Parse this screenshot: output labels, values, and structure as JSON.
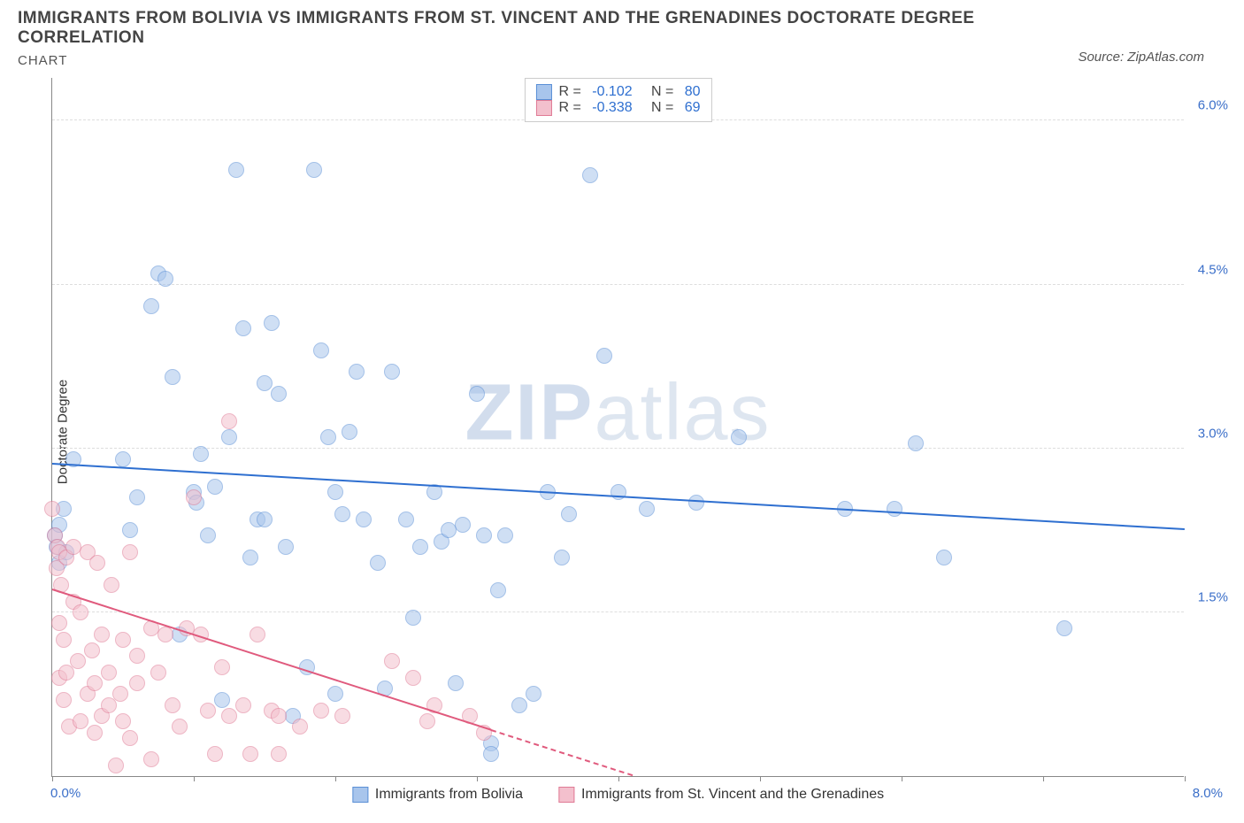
{
  "title": "IMMIGRANTS FROM BOLIVIA VS IMMIGRANTS FROM ST. VINCENT AND THE GRENADINES DOCTORATE DEGREE CORRELATION",
  "subtitle": "CHART",
  "source_label": "Source: ZipAtlas.com",
  "ylabel": "Doctorate Degree",
  "watermark_bold": "ZIP",
  "watermark_light": "atlas",
  "x_axis": {
    "min": 0.0,
    "max": 8.0,
    "start_label": "0.0%",
    "end_label": "8.0%",
    "tick_step": 1.0
  },
  "y_axis": {
    "min": 0.0,
    "max": 6.4,
    "gridlines": [
      1.5,
      3.0,
      4.5,
      6.0
    ],
    "tick_labels": [
      "1.5%",
      "3.0%",
      "4.5%",
      "6.0%"
    ]
  },
  "series": [
    {
      "id": "bolivia",
      "label": "Immigrants from Bolivia",
      "color_fill": "#a8c5ec",
      "color_stroke": "#5a8fd6",
      "line_color": "#2e6fd0",
      "marker_radius": 9,
      "fill_opacity": 0.55,
      "R": "-0.102",
      "N": "80",
      "trend": {
        "x1": 0.0,
        "y1": 2.85,
        "x2": 8.0,
        "y2": 2.25,
        "dash_from_x": null
      },
      "points": [
        [
          0.02,
          2.2
        ],
        [
          0.03,
          2.1
        ],
        [
          0.05,
          2.3
        ],
        [
          0.05,
          1.95
        ],
        [
          0.08,
          2.45
        ],
        [
          0.1,
          2.05
        ],
        [
          0.15,
          2.9
        ],
        [
          0.5,
          2.9
        ],
        [
          0.55,
          2.25
        ],
        [
          0.6,
          2.55
        ],
        [
          0.7,
          4.3
        ],
        [
          0.75,
          4.6
        ],
        [
          0.8,
          4.55
        ],
        [
          0.85,
          3.65
        ],
        [
          0.9,
          1.3
        ],
        [
          1.0,
          2.6
        ],
        [
          1.02,
          2.5
        ],
        [
          1.05,
          2.95
        ],
        [
          1.1,
          2.2
        ],
        [
          1.15,
          2.65
        ],
        [
          1.2,
          0.7
        ],
        [
          1.25,
          3.1
        ],
        [
          1.3,
          5.55
        ],
        [
          1.35,
          4.1
        ],
        [
          1.4,
          2.0
        ],
        [
          1.45,
          2.35
        ],
        [
          1.5,
          3.6
        ],
        [
          1.5,
          2.35
        ],
        [
          1.55,
          4.15
        ],
        [
          1.6,
          3.5
        ],
        [
          1.65,
          2.1
        ],
        [
          1.7,
          0.55
        ],
        [
          1.8,
          1.0
        ],
        [
          1.85,
          5.55
        ],
        [
          1.9,
          3.9
        ],
        [
          1.95,
          3.1
        ],
        [
          2.0,
          0.75
        ],
        [
          2.0,
          2.6
        ],
        [
          2.05,
          2.4
        ],
        [
          2.1,
          3.15
        ],
        [
          2.15,
          3.7
        ],
        [
          2.2,
          2.35
        ],
        [
          2.3,
          1.95
        ],
        [
          2.35,
          0.8
        ],
        [
          2.4,
          3.7
        ],
        [
          2.5,
          2.35
        ],
        [
          2.55,
          1.45
        ],
        [
          2.6,
          2.1
        ],
        [
          2.7,
          2.6
        ],
        [
          2.75,
          2.15
        ],
        [
          2.8,
          2.25
        ],
        [
          2.85,
          0.85
        ],
        [
          2.9,
          2.3
        ],
        [
          3.0,
          3.5
        ],
        [
          3.05,
          2.2
        ],
        [
          3.1,
          0.3
        ],
        [
          3.1,
          0.2
        ],
        [
          3.15,
          1.7
        ],
        [
          3.2,
          2.2
        ],
        [
          3.3,
          0.65
        ],
        [
          3.4,
          0.75
        ],
        [
          3.5,
          2.6
        ],
        [
          3.6,
          2.0
        ],
        [
          3.65,
          2.4
        ],
        [
          3.8,
          5.5
        ],
        [
          3.9,
          3.85
        ],
        [
          4.0,
          2.6
        ],
        [
          4.2,
          2.45
        ],
        [
          4.55,
          2.5
        ],
        [
          4.85,
          3.1
        ],
        [
          5.6,
          2.45
        ],
        [
          5.95,
          2.45
        ],
        [
          6.1,
          3.05
        ],
        [
          6.3,
          2.0
        ],
        [
          7.15,
          1.35
        ]
      ]
    },
    {
      "id": "stvincent",
      "label": "Immigrants from St. Vincent and the Grenadines",
      "color_fill": "#f3c0cd",
      "color_stroke": "#e07a95",
      "line_color": "#e05a7d",
      "marker_radius": 9,
      "fill_opacity": 0.55,
      "R": "-0.338",
      "N": "69",
      "trend": {
        "x1": 0.0,
        "y1": 1.7,
        "x2": 4.1,
        "y2": 0.0,
        "dash_from_x": 3.1
      },
      "points": [
        [
          0.0,
          2.45
        ],
        [
          0.02,
          2.2
        ],
        [
          0.03,
          1.9
        ],
        [
          0.04,
          2.1
        ],
        [
          0.05,
          1.4
        ],
        [
          0.05,
          2.05
        ],
        [
          0.05,
          0.9
        ],
        [
          0.06,
          1.75
        ],
        [
          0.08,
          1.25
        ],
        [
          0.08,
          0.7
        ],
        [
          0.1,
          0.95
        ],
        [
          0.1,
          2.0
        ],
        [
          0.12,
          0.45
        ],
        [
          0.15,
          1.6
        ],
        [
          0.15,
          2.1
        ],
        [
          0.18,
          1.05
        ],
        [
          0.2,
          0.5
        ],
        [
          0.2,
          1.5
        ],
        [
          0.25,
          2.05
        ],
        [
          0.25,
          0.75
        ],
        [
          0.28,
          1.15
        ],
        [
          0.3,
          0.4
        ],
        [
          0.3,
          0.85
        ],
        [
          0.32,
          1.95
        ],
        [
          0.35,
          0.55
        ],
        [
          0.35,
          1.3
        ],
        [
          0.4,
          0.95
        ],
        [
          0.4,
          0.65
        ],
        [
          0.42,
          1.75
        ],
        [
          0.45,
          0.1
        ],
        [
          0.48,
          0.75
        ],
        [
          0.5,
          0.5
        ],
        [
          0.5,
          1.25
        ],
        [
          0.55,
          0.35
        ],
        [
          0.55,
          2.05
        ],
        [
          0.6,
          1.1
        ],
        [
          0.6,
          0.85
        ],
        [
          0.7,
          0.15
        ],
        [
          0.7,
          1.35
        ],
        [
          0.75,
          0.95
        ],
        [
          0.8,
          1.3
        ],
        [
          0.85,
          0.65
        ],
        [
          0.9,
          0.45
        ],
        [
          0.95,
          1.35
        ],
        [
          1.0,
          2.55
        ],
        [
          1.05,
          1.3
        ],
        [
          1.1,
          0.6
        ],
        [
          1.15,
          0.2
        ],
        [
          1.2,
          1.0
        ],
        [
          1.25,
          0.55
        ],
        [
          1.25,
          3.25
        ],
        [
          1.35,
          0.65
        ],
        [
          1.4,
          0.2
        ],
        [
          1.45,
          1.3
        ],
        [
          1.55,
          0.6
        ],
        [
          1.6,
          0.55
        ],
        [
          1.6,
          0.2
        ],
        [
          1.75,
          0.45
        ],
        [
          1.9,
          0.6
        ],
        [
          2.05,
          0.55
        ],
        [
          2.4,
          1.05
        ],
        [
          2.55,
          0.9
        ],
        [
          2.65,
          0.5
        ],
        [
          2.7,
          0.65
        ],
        [
          2.95,
          0.55
        ],
        [
          3.05,
          0.4
        ]
      ]
    }
  ],
  "legend_box": {
    "r_label": "R =",
    "n_label": "N =",
    "r_color": "#2e6fd0",
    "n_color": "#2e6fd0",
    "text_color": "#444"
  }
}
